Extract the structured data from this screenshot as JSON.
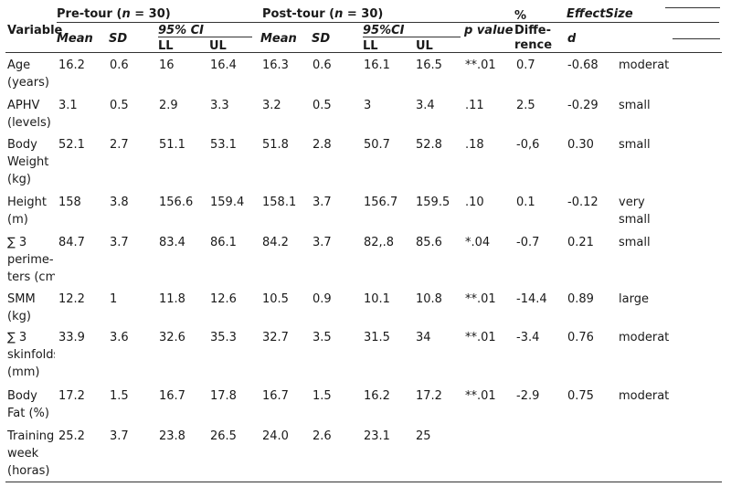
{
  "header": {
    "variable": "Variable",
    "pre_group": "Pre-tour (",
    "pre_n": "n",
    "pre_eq": " =  30)",
    "post_group": "Post-tour (",
    "post_n": "n",
    "post_eq": " = 30)",
    "mean": "Mean",
    "sd": "SD",
    "ci_pre": "95% CI",
    "ci_post": "95%CI",
    "ll": "LL",
    "ul": "UL",
    "p_value": "p value",
    "pct": "%",
    "diff_1": "Diffe-",
    "diff_2": "rence",
    "effect_size": "EffectSize",
    "d": "d"
  },
  "rows": [
    {
      "variable": [
        "Age",
        "(years)"
      ],
      "pre_mean": "16.2",
      "pre_sd": "0.6",
      "pre_ll": "16",
      "pre_ul": "16.4",
      "post_mean": "16.3",
      "post_sd": "0.6",
      "post_ll": "16.1",
      "post_ul": "16.5",
      "p": "**.01",
      "diff": "0.7",
      "d": "-0.68",
      "effect": [
        "moderate"
      ]
    },
    {
      "variable": [
        "APHV",
        "(levels)"
      ],
      "pre_mean": "3.1",
      "pre_sd": "0.5",
      "pre_ll": "2.9",
      "pre_ul": "3.3",
      "post_mean": "3.2",
      "post_sd": "0.5",
      "post_ll": "3",
      "post_ul": "3.4",
      "p": ".11",
      "diff": "2.5",
      "d": "-0.29",
      "effect": [
        "small"
      ]
    },
    {
      "variable": [
        "Body",
        "Weight",
        "(kg)"
      ],
      "pre_mean": "52.1",
      "pre_sd": "2.7",
      "pre_ll": "51.1",
      "pre_ul": "53.1",
      "post_mean": "51.8",
      "post_sd": "2.8",
      "post_ll": "50.7",
      "post_ul": "52.8",
      "p": ".18",
      "diff": "-0,6",
      "d": "0.30",
      "effect": [
        "small"
      ]
    },
    {
      "variable": [
        "Height",
        "(m)"
      ],
      "pre_mean": "158",
      "pre_sd": "3.8",
      "pre_ll": "156.6",
      "pre_ul": "159.4",
      "post_mean": "158.1",
      "post_sd": "3.7",
      "post_ll": "156.7",
      "post_ul": "159.5",
      "p": ".10",
      "diff": "0.1",
      "d": "-0.12",
      "effect": [
        "very",
        "small"
      ]
    },
    {
      "variable": [
        "∑ 3",
        "perime-",
        "ters (cm)"
      ],
      "pre_mean": "84.7",
      "pre_sd": "3.7",
      "pre_ll": "83.4",
      "pre_ul": "86.1",
      "post_mean": "84.2",
      "post_sd": "3.7",
      "post_ll": "82,.8",
      "post_ul": "85.6",
      "p": "*.04",
      "diff": "-0.7",
      "d": "0.21",
      "effect": [
        "small"
      ]
    },
    {
      "variable": [
        "SMM",
        "(kg)"
      ],
      "pre_mean": "12.2",
      "pre_sd": "1",
      "pre_ll": "11.8",
      "pre_ul": "12.6",
      "post_mean": "10.5",
      "post_sd": "0.9",
      "post_ll": "10.1",
      "post_ul": "10.8",
      "p": "**.01",
      "diff": "-14.4",
      "d": "0.89",
      "effect": [
        "large"
      ]
    },
    {
      "variable": [
        "∑ 3",
        "skinfolds",
        "(mm)"
      ],
      "pre_mean": "33.9",
      "pre_sd": "3.6",
      "pre_ll": "32.6",
      "pre_ul": "35.3",
      "post_mean": "32.7",
      "post_sd": "3.5",
      "post_ll": "31.5",
      "post_ul": "34",
      "p": "**.01",
      "diff": "-3.4",
      "d": "0.76",
      "effect": [
        "moderate"
      ]
    },
    {
      "variable": [
        "Body",
        "Fat (%)"
      ],
      "pre_mean": "17.2",
      "pre_sd": "1.5",
      "pre_ll": "16.7",
      "pre_ul": "17.8",
      "post_mean": "16.7",
      "post_sd": "1.5",
      "post_ll": "16.2",
      "post_ul": "17.2",
      "p": "**.01",
      "diff": "-2.9",
      "d": "0.75",
      "effect": [
        "moderate"
      ]
    },
    {
      "variable": [
        "Training",
        "week",
        "(horas)"
      ],
      "pre_mean": "25.2",
      "pre_sd": "3.7",
      "pre_ll": "23.8",
      "pre_ul": "26.5",
      "post_mean": "24.0",
      "post_sd": "2.6",
      "post_ll": "23.1",
      "post_ul": "25",
      "p": "",
      "diff": "",
      "d": "",
      "effect": [
        ""
      ]
    }
  ]
}
